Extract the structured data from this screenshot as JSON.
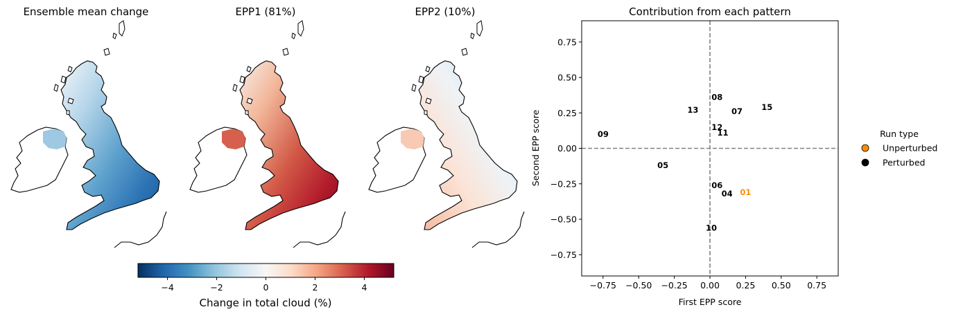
{
  "maps": [
    {
      "title": "Ensemble mean change",
      "style": "blue"
    },
    {
      "title": "EPP1 (81%)",
      "style": "red"
    },
    {
      "title": "EPP2 (10%)",
      "style": "mixed"
    }
  ],
  "colorbar": {
    "label": "Change in total cloud (%)",
    "ticks": [
      "−4",
      "−2",
      "0",
      "2",
      "4"
    ],
    "tick_values": [
      -4,
      -2,
      0,
      2,
      4
    ],
    "range": [
      -5.2,
      5.2
    ],
    "colormap": [
      "#053061",
      "#2166ac",
      "#4393c3",
      "#92c5de",
      "#d1e5f0",
      "#f7f7f7",
      "#fddbc7",
      "#f4a582",
      "#d6604d",
      "#b2182b",
      "#67001f"
    ]
  },
  "chart_data": {
    "type": "scatter",
    "title": "Contribution from each pattern",
    "xlabel": "First EPP score",
    "ylabel": "Second EPP score",
    "xlim": [
      -0.9,
      0.9
    ],
    "ylim": [
      -0.9,
      0.9
    ],
    "xticks": [
      -0.75,
      -0.5,
      -0.25,
      0.0,
      0.25,
      0.5,
      0.75
    ],
    "xtick_labels": [
      "−0.75",
      "−0.50",
      "−0.25",
      "0.00",
      "0.25",
      "0.50",
      "0.75"
    ],
    "yticks": [
      -0.75,
      -0.5,
      -0.25,
      0.0,
      0.25,
      0.5,
      0.75
    ],
    "ytick_labels": [
      "−0.75",
      "−0.50",
      "−0.25",
      "0.00",
      "0.25",
      "0.50",
      "0.75"
    ],
    "reference_lines": {
      "x": 0,
      "y": 0,
      "style": "dashed",
      "color": "#808080"
    },
    "points": [
      {
        "label": "01",
        "x": 0.25,
        "y": -0.31,
        "type": "Unperturbed"
      },
      {
        "label": "04",
        "x": 0.12,
        "y": -0.32,
        "type": "Perturbed"
      },
      {
        "label": "05",
        "x": -0.33,
        "y": -0.12,
        "type": "Perturbed"
      },
      {
        "label": "06",
        "x": 0.05,
        "y": -0.26,
        "type": "Perturbed"
      },
      {
        "label": "07",
        "x": 0.19,
        "y": 0.26,
        "type": "Perturbed"
      },
      {
        "label": "08",
        "x": 0.05,
        "y": 0.36,
        "type": "Perturbed"
      },
      {
        "label": "09",
        "x": -0.75,
        "y": 0.1,
        "type": "Perturbed"
      },
      {
        "label": "10",
        "x": 0.01,
        "y": -0.56,
        "type": "Perturbed"
      },
      {
        "label": "11",
        "x": 0.09,
        "y": 0.11,
        "type": "Perturbed"
      },
      {
        "label": "12",
        "x": 0.05,
        "y": 0.15,
        "type": "Perturbed"
      },
      {
        "label": "13",
        "x": -0.12,
        "y": 0.27,
        "type": "Perturbed"
      },
      {
        "label": "15",
        "x": 0.4,
        "y": 0.29,
        "type": "Perturbed"
      }
    ],
    "legend": {
      "title": "Run type",
      "placement": "right",
      "entries": [
        {
          "label": "Unperturbed",
          "color": "#ff8c00"
        },
        {
          "label": "Perturbed",
          "color": "#000000"
        }
      ]
    }
  }
}
